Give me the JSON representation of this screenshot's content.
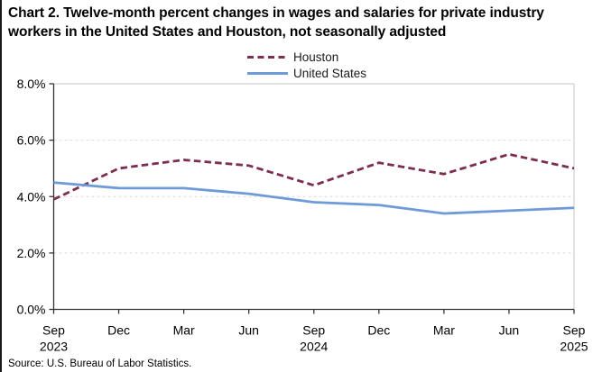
{
  "title": "Chart 2. Twelve-month percent changes in wages and salaries for private industry workers in the United States and Houston, not seasonally adjusted",
  "source": "Source: U.S. Bureau of Labor Statistics.",
  "colors": {
    "houston_line": "#7B2D52",
    "united_states_line": "#6E9BD8",
    "gridline": "#D9D9D9",
    "plot_border": "#C6C6C6",
    "axis": "#333333",
    "text": "#000000"
  },
  "chart_data": {
    "type": "line",
    "title": "Chart 2. Twelve-month percent changes in wages and salaries for private industry workers in the United States and Houston, not seasonally adjusted",
    "categories": [
      {
        "month": "Sep",
        "year": "2023"
      },
      {
        "month": "Dec",
        "year": ""
      },
      {
        "month": "Mar",
        "year": ""
      },
      {
        "month": "Jun",
        "year": ""
      },
      {
        "month": "Sep",
        "year": "2024"
      },
      {
        "month": "Dec",
        "year": ""
      },
      {
        "month": "Mar",
        "year": ""
      },
      {
        "month": "Jun",
        "year": ""
      },
      {
        "month": "Sep",
        "year": "2025"
      }
    ],
    "series": [
      {
        "name": "Houston",
        "values": [
          3.9,
          5.0,
          5.3,
          5.1,
          4.4,
          5.2,
          4.8,
          5.5,
          5.0
        ],
        "color": "#7B2D52",
        "line_style": "dashed"
      },
      {
        "name": "United States",
        "values": [
          4.5,
          4.3,
          4.3,
          4.1,
          3.8,
          3.7,
          3.4,
          3.5,
          3.6
        ],
        "color": "#6E9BD8",
        "line_style": "solid"
      }
    ],
    "xlabel": "",
    "ylabel": "",
    "ylim": [
      0,
      8
    ],
    "ytick_step": 2,
    "ytick_labels": [
      "0.0%",
      "2.0%",
      "4.0%",
      "6.0%",
      "8.0%"
    ],
    "grid": true,
    "legend_position": "top-center"
  }
}
